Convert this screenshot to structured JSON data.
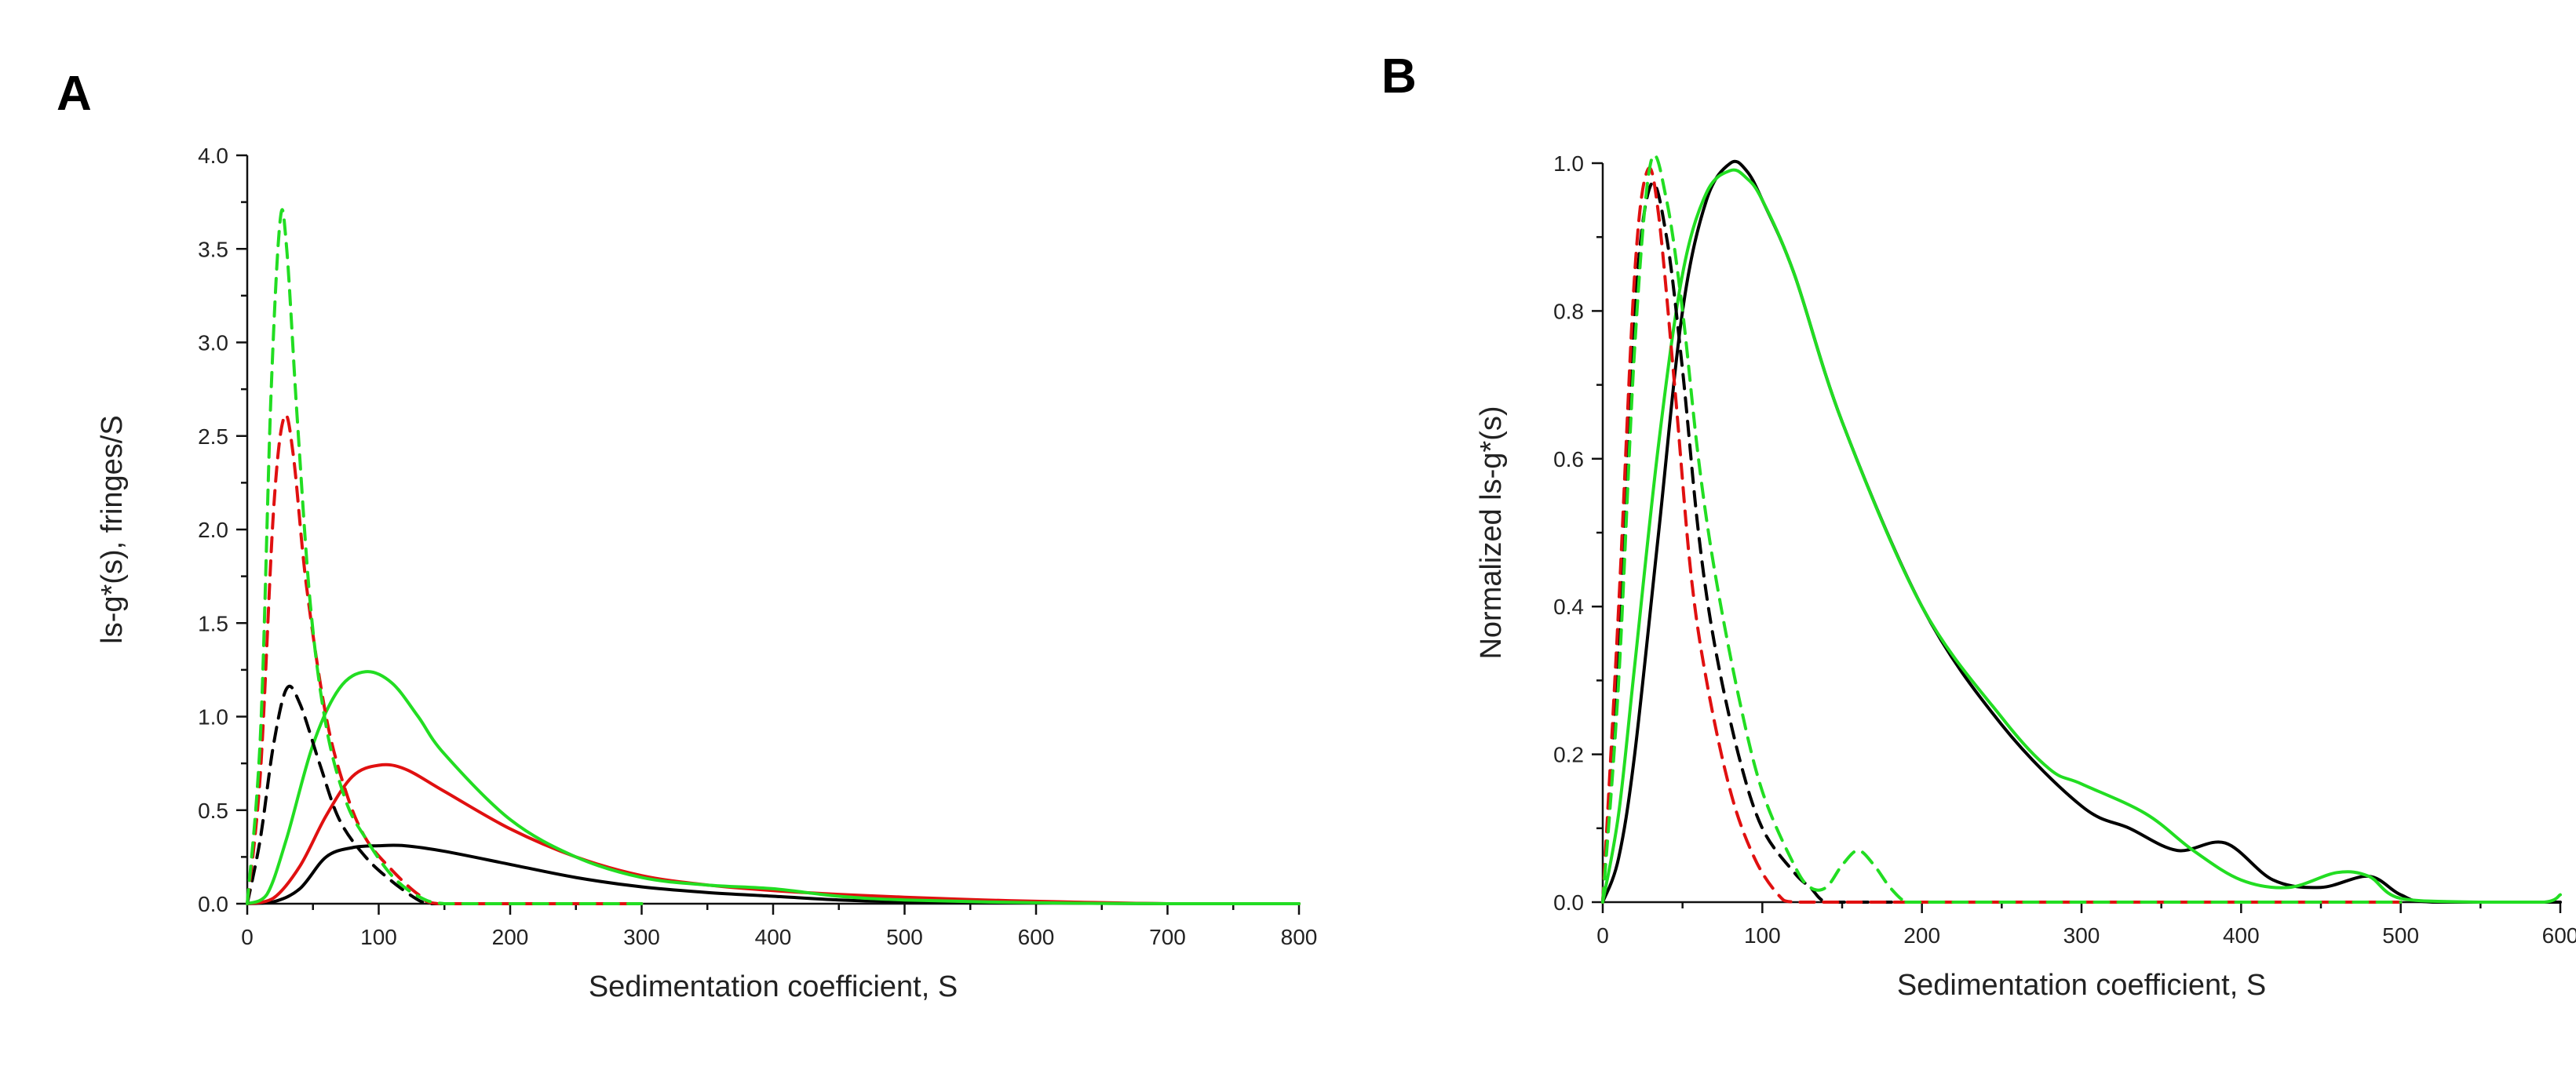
{
  "chart_data": [
    {
      "panel": "A",
      "type": "line",
      "title": "",
      "xlabel": "Sedimentation coefficient, S",
      "ylabel": "ls-g*(s), fringes/S",
      "xlim": [
        0,
        800
      ],
      "ylim": [
        0,
        4.0
      ],
      "x_ticks": [
        0,
        100,
        200,
        300,
        400,
        500,
        600,
        700,
        800
      ],
      "y_ticks": [
        0.0,
        0.5,
        1.0,
        1.5,
        2.0,
        2.5,
        3.0,
        3.5,
        4.0
      ],
      "x_tick_labels": [
        "0",
        "100",
        "200",
        "300",
        "400",
        "500",
        "600",
        "700",
        "800"
      ],
      "y_tick_labels": [
        "0.0",
        "0.5",
        "1.0",
        "1.5",
        "2.0",
        "2.5",
        "3.0",
        "3.5",
        "4.0"
      ],
      "grid": false,
      "series": [
        {
          "name": "black solid",
          "color": "#000000",
          "dash": "solid",
          "x": [
            0,
            20,
            40,
            60,
            80,
            100,
            120,
            150,
            200,
            250,
            300,
            350,
            400,
            450,
            500,
            600,
            700,
            800
          ],
          "y": [
            0,
            0.01,
            0.08,
            0.25,
            0.3,
            0.31,
            0.31,
            0.28,
            0.21,
            0.14,
            0.09,
            0.06,
            0.04,
            0.02,
            0.01,
            0.005,
            0.0,
            0.0
          ]
        },
        {
          "name": "red solid",
          "color": "#e01010",
          "dash": "solid",
          "x": [
            0,
            20,
            40,
            60,
            80,
            100,
            120,
            150,
            200,
            250,
            300,
            350,
            400,
            450,
            500,
            560,
            620,
            700,
            800
          ],
          "y": [
            0,
            0.03,
            0.2,
            0.47,
            0.68,
            0.74,
            0.72,
            0.6,
            0.4,
            0.25,
            0.15,
            0.1,
            0.07,
            0.05,
            0.035,
            0.02,
            0.01,
            0.0,
            0.0
          ]
        },
        {
          "name": "green solid",
          "color": "#22dd22",
          "dash": "solid",
          "x": [
            0,
            15,
            30,
            50,
            70,
            90,
            110,
            130,
            150,
            200,
            250,
            300,
            350,
            400,
            450,
            500,
            600,
            700,
            800
          ],
          "y": [
            0,
            0.05,
            0.35,
            0.85,
            1.15,
            1.24,
            1.18,
            1.0,
            0.8,
            0.45,
            0.25,
            0.14,
            0.1,
            0.08,
            0.04,
            0.02,
            0.005,
            0.0,
            0.0
          ]
        },
        {
          "name": "black dashed",
          "color": "#000000",
          "dash": "dashed",
          "x": [
            0,
            10,
            20,
            30,
            40,
            55,
            70,
            90,
            110,
            130,
            140,
            150,
            200,
            250,
            300
          ],
          "y": [
            0,
            0.35,
            0.85,
            1.15,
            1.07,
            0.75,
            0.45,
            0.25,
            0.12,
            0.02,
            0.0,
            0.0,
            0.0,
            0.0,
            0.0
          ]
        },
        {
          "name": "red dashed",
          "color": "#e01010",
          "dash": "dashed",
          "x": [
            0,
            10,
            20,
            28,
            35,
            45,
            60,
            75,
            90,
            110,
            130,
            145,
            200,
            250,
            300
          ],
          "y": [
            0,
            0.7,
            2.1,
            2.6,
            2.4,
            1.7,
            1.0,
            0.6,
            0.35,
            0.18,
            0.05,
            0.0,
            0.0,
            0.0,
            0.0
          ]
        },
        {
          "name": "green dashed",
          "color": "#22dd22",
          "dash": "dashed",
          "x": [
            0,
            10,
            18,
            25,
            30,
            38,
            48,
            60,
            75,
            90,
            110,
            130,
            150,
            200,
            250,
            300
          ],
          "y": [
            0,
            0.9,
            2.7,
            3.65,
            3.5,
            2.6,
            1.6,
            0.95,
            0.55,
            0.35,
            0.15,
            0.04,
            0.0,
            0.0,
            0.0,
            0.0
          ]
        }
      ]
    },
    {
      "panel": "B",
      "type": "line",
      "title": "",
      "xlabel": "Sedimentation coefficient, S",
      "ylabel": "Normalized ls-g*(s)",
      "xlim": [
        0,
        600
      ],
      "ylim": [
        0,
        1.0
      ],
      "x_ticks": [
        0,
        100,
        200,
        300,
        400,
        500,
        600
      ],
      "y_ticks": [
        0.0,
        0.2,
        0.4,
        0.6,
        0.8,
        1.0
      ],
      "x_tick_labels": [
        "0",
        "100",
        "200",
        "300",
        "400",
        "500",
        "600"
      ],
      "y_tick_labels": [
        "0.0",
        "0.2",
        "0.4",
        "0.6",
        "0.8",
        "1.0"
      ],
      "grid": false,
      "series": [
        {
          "name": "black solid",
          "color": "#000000",
          "dash": "solid",
          "x": [
            0,
            10,
            20,
            35,
            50,
            65,
            80,
            90,
            100,
            120,
            150,
            200,
            250,
            300,
            330,
            360,
            390,
            420,
            450,
            480,
            500,
            520,
            600
          ],
          "y": [
            0,
            0.06,
            0.2,
            0.5,
            0.8,
            0.95,
            1.0,
            0.99,
            0.95,
            0.85,
            0.65,
            0.4,
            0.24,
            0.13,
            0.1,
            0.07,
            0.08,
            0.03,
            0.02,
            0.035,
            0.01,
            0.0,
            0.0
          ]
        },
        {
          "name": "green solid",
          "color": "#22dd22",
          "dash": "solid",
          "x": [
            0,
            10,
            20,
            35,
            50,
            65,
            80,
            90,
            100,
            120,
            150,
            200,
            250,
            280,
            300,
            340,
            370,
            400,
            430,
            460,
            480,
            500,
            550,
            590,
            600
          ],
          "y": [
            0,
            0.12,
            0.32,
            0.62,
            0.85,
            0.96,
            0.99,
            0.98,
            0.95,
            0.85,
            0.65,
            0.4,
            0.25,
            0.18,
            0.16,
            0.12,
            0.07,
            0.03,
            0.02,
            0.04,
            0.035,
            0.005,
            0.0,
            0.0,
            0.01
          ]
        },
        {
          "name": "black dashed",
          "color": "#000000",
          "dash": "dashed",
          "x": [
            0,
            10,
            20,
            30,
            40,
            50,
            60,
            70,
            85,
            100,
            120,
            130,
            140,
            160,
            200,
            300,
            400,
            500
          ],
          "y": [
            0,
            0.35,
            0.8,
            0.97,
            0.9,
            0.72,
            0.5,
            0.35,
            0.2,
            0.1,
            0.04,
            0.02,
            0.0,
            0.0,
            0.0,
            0.0,
            0.0,
            0.0
          ]
        },
        {
          "name": "red dashed",
          "color": "#e01010",
          "dash": "dashed",
          "x": [
            0,
            10,
            20,
            28,
            35,
            45,
            55,
            65,
            80,
            95,
            110,
            120,
            150,
            200,
            300,
            400,
            500
          ],
          "y": [
            0,
            0.4,
            0.85,
            0.99,
            0.93,
            0.7,
            0.45,
            0.3,
            0.15,
            0.06,
            0.01,
            0.0,
            0.0,
            0.0,
            0.0,
            0.0,
            0.0
          ]
        },
        {
          "name": "green dashed",
          "color": "#22dd22",
          "dash": "dashed",
          "x": [
            0,
            10,
            20,
            30,
            40,
            50,
            60,
            70,
            85,
            100,
            120,
            130,
            140,
            150,
            160,
            170,
            180,
            190,
            200,
            300,
            400,
            500
          ],
          "y": [
            0,
            0.3,
            0.75,
            1.0,
            0.95,
            0.8,
            0.6,
            0.45,
            0.28,
            0.15,
            0.05,
            0.02,
            0.02,
            0.05,
            0.07,
            0.05,
            0.02,
            0.0,
            0.0,
            0.0,
            0.0,
            0.0
          ]
        }
      ]
    }
  ],
  "panels": {
    "a_letter": "A",
    "b_letter": "B"
  }
}
